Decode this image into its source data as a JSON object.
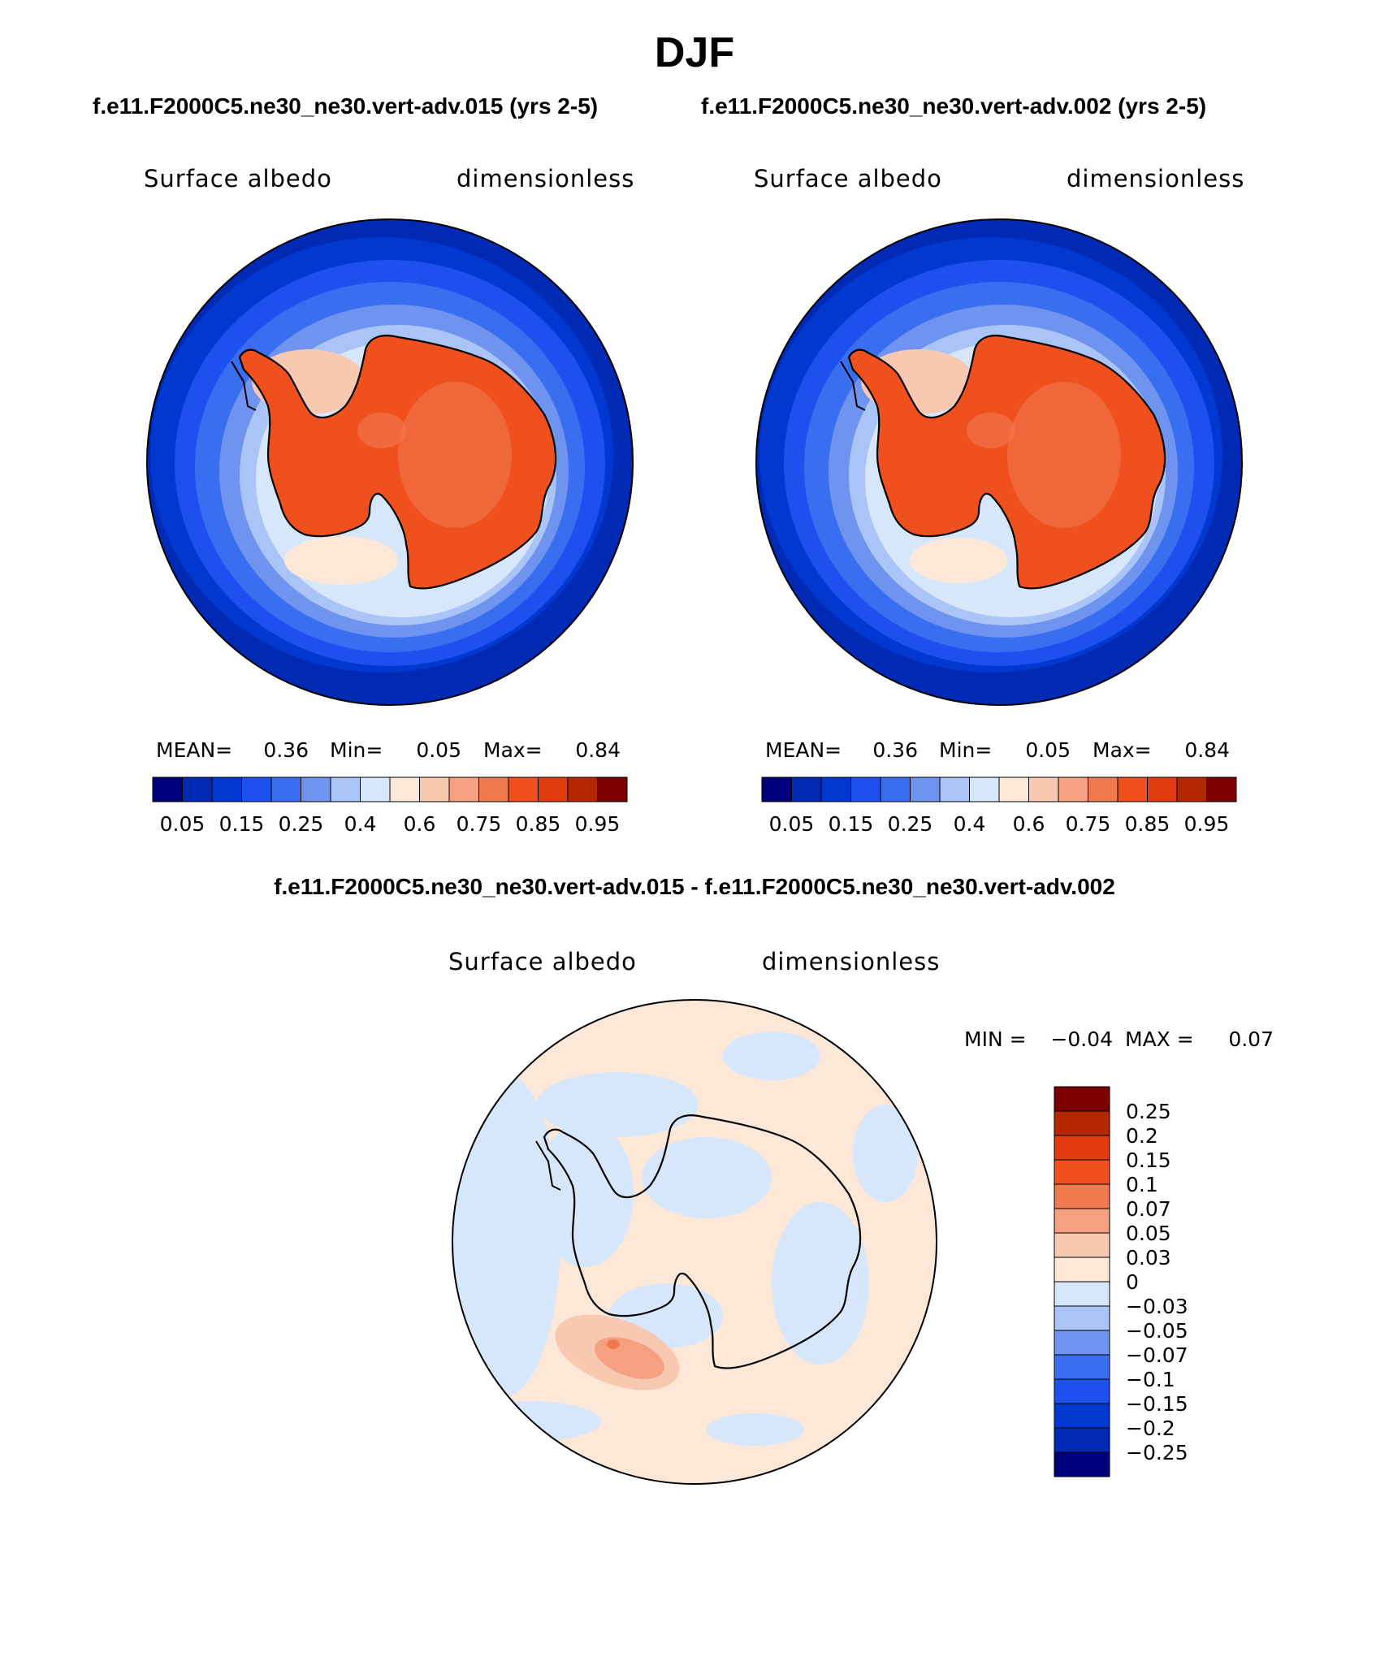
{
  "title": "DJF",
  "panel_top_left": {
    "case": "f.e11.F2000C5.ne30_ne30.vert-adv.015 (yrs 2-5)",
    "left_label": "Surface albedo",
    "right_label": "dimensionless",
    "stats": {
      "mean_label": "MEAN=",
      "mean": "0.36",
      "min_label": "Min=",
      "min": "0.05",
      "max_label": "Max=",
      "max": "0.84"
    }
  },
  "panel_top_right": {
    "case": "f.e11.F2000C5.ne30_ne30.vert-adv.002 (yrs 2-5)",
    "left_label": "Surface albedo",
    "right_label": "dimensionless",
    "stats": {
      "mean_label": "MEAN=",
      "mean": "0.36",
      "min_label": "Min=",
      "min": "0.05",
      "max_label": "Max=",
      "max": "0.84"
    }
  },
  "panel_diff": {
    "title": "f.e11.F2000C5.ne30_ne30.vert-adv.015 - f.e11.F2000C5.ne30_ne30.vert-adv.002",
    "left_label": "Surface albedo",
    "right_label": "dimensionless",
    "minmax": {
      "min_label": "MIN =",
      "min": "−0.04",
      "max_label": "MAX =",
      "max": "0.07"
    }
  },
  "colorbar_abs": {
    "colors": [
      "#00007c",
      "#0029b4",
      "#0038d0",
      "#1e50f0",
      "#3a6ef0",
      "#6e94f0",
      "#aac4f8",
      "#d6e6fb",
      "#fde8d8",
      "#f9c8b0",
      "#f5a080",
      "#f07a50",
      "#f0501e",
      "#e03c10",
      "#b42800",
      "#7c0000"
    ],
    "labels": [
      "0.05",
      "0.15",
      "0.25",
      "0.4",
      "0.6",
      "0.75",
      "0.85",
      "0.95"
    ]
  },
  "colorbar_diff": {
    "colors": [
      "#00007c",
      "#0029b4",
      "#0038d0",
      "#1e50f0",
      "#3a6ef0",
      "#6e94f0",
      "#aac4f8",
      "#d6e6fb",
      "#fde8d8",
      "#f9c8b0",
      "#f5a080",
      "#f07a50",
      "#f0501e",
      "#e03c10",
      "#b42800",
      "#7c0000"
    ],
    "labels": [
      "0.25",
      "0.2",
      "0.15",
      "0.1",
      "0.07",
      "0.05",
      "0.03",
      "0",
      "−0.03",
      "−0.05",
      "−0.07",
      "−0.1",
      "−0.15",
      "−0.2",
      "−0.25"
    ]
  },
  "map_colors": {
    "ocean": "#0029b4",
    "ice_sheet": "#f0501e",
    "ice_inner": "#f07a50",
    "diff_pos": "#fde8d8",
    "diff_neg": "#d6e6fb"
  }
}
